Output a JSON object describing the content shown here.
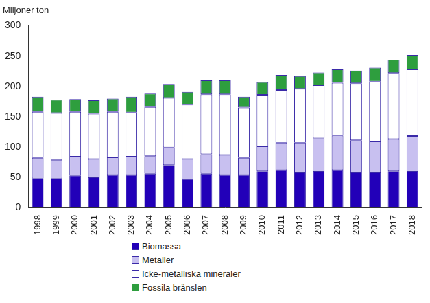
{
  "chart_data": {
    "type": "bar",
    "stacked": true,
    "ylabel": "Miljoner ton",
    "categories": [
      "1998",
      "1999",
      "2000",
      "2001",
      "2002",
      "2003",
      "2004",
      "2005",
      "2006",
      "2007",
      "2008",
      "2009",
      "2010",
      "2011",
      "2012",
      "2013",
      "2014",
      "2015",
      "2016",
      "2017",
      "2018"
    ],
    "series": [
      {
        "name": "Biomassa",
        "color": "#2200b8",
        "values": [
          48,
          48,
          53,
          50,
          54,
          54,
          56,
          70,
          47,
          56,
          54,
          54,
          60,
          62,
          58,
          59,
          62,
          58,
          58,
          60,
          59
        ]
      },
      {
        "name": "Metaller",
        "color": "#c8c0f0",
        "values": [
          34,
          30,
          31,
          30,
          29,
          30,
          29,
          29,
          33,
          32,
          33,
          28,
          41,
          45,
          49,
          55,
          57,
          53,
          51,
          53,
          59
        ]
      },
      {
        "name": "Icke-metalliska mineraler",
        "color": "#ffffff",
        "values": [
          76,
          78,
          74,
          75,
          75,
          73,
          81,
          82,
          90,
          99,
          100,
          83,
          85,
          87,
          89,
          88,
          87,
          94,
          99,
          109,
          110
        ]
      },
      {
        "name": "Fossila bränslen",
        "color": "#2e9e3e",
        "values": [
          25,
          22,
          21,
          22,
          22,
          26,
          22,
          23,
          21,
          23,
          23,
          18,
          21,
          25,
          21,
          21,
          22,
          21,
          23,
          22,
          24
        ]
      }
    ],
    "ylim": [
      0,
      300
    ],
    "yticks": [
      0,
      50,
      100,
      150,
      200,
      250,
      300
    ],
    "grid": false,
    "legend": "bottom"
  }
}
